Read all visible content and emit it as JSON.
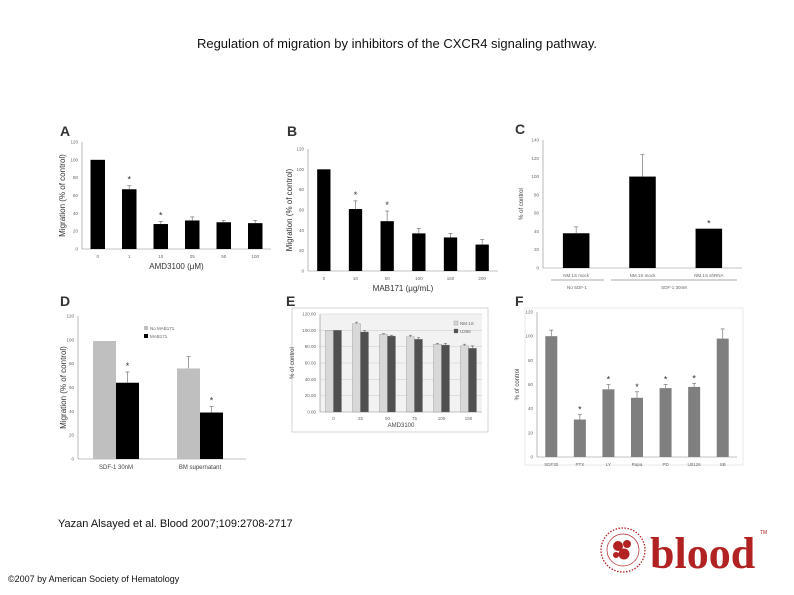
{
  "title": "Regulation of migration by inhibitors of the CXCR4 signaling pathway.",
  "citation": "Yazan Alsayed et al. Blood 2007;109:2708-2717",
  "copyright": "©2007 by American Society of Hematology",
  "logo": {
    "text": "blood",
    "tm": "TM"
  },
  "colors": {
    "black_bar": "#000000",
    "gray_bar": "#bfbfbf",
    "dark_gray_bar": "#505050",
    "light_gray_bar": "#d8d8d8",
    "gray_dark_F": "#7f7f7f",
    "logo_red": "#b22222"
  },
  "chart_data": [
    {
      "panel": "A",
      "type": "bar",
      "ylabel": "Migration (% of control)",
      "xlabel": "AMD3100 (μM)",
      "ylim": [
        0,
        120
      ],
      "yticks": [
        "0",
        "20",
        "40",
        "60",
        "80",
        "100",
        "120"
      ],
      "categories": [
        "0",
        "1",
        "10",
        "25",
        "50",
        "100"
      ],
      "values": [
        100,
        67,
        28,
        32,
        30,
        29
      ],
      "errors": [
        0,
        4,
        3,
        4,
        2,
        3
      ],
      "stars": [
        "",
        "*",
        "*",
        "",
        "",
        ""
      ]
    },
    {
      "panel": "B",
      "type": "bar",
      "ylabel": "Migration (% of control)",
      "xlabel": "MAB171 (μg/mL)",
      "ylim": [
        0,
        120
      ],
      "yticks": [
        "0",
        "20",
        "40",
        "60",
        "80",
        "100",
        "120"
      ],
      "categories": [
        "0",
        "10",
        "50",
        "100",
        "150",
        "200"
      ],
      "values": [
        100,
        61,
        49,
        37,
        33,
        26
      ],
      "errors": [
        0,
        8,
        10,
        5,
        4,
        5
      ],
      "stars": [
        "",
        "*",
        "*",
        "",
        "",
        ""
      ]
    },
    {
      "panel": "C",
      "type": "bar",
      "ylabel": "% of control",
      "ylim": [
        0,
        140
      ],
      "yticks": [
        "0",
        "20",
        "40",
        "60",
        "80",
        "100",
        "120",
        "140"
      ],
      "categories": [
        "NM.1S mock",
        "NM.1S mock",
        "NM.1S shRNA"
      ],
      "group_labels": [
        "No SDF-1",
        "SDF-1 30nM"
      ],
      "values": [
        38,
        100,
        43
      ],
      "errors": [
        7,
        24,
        0
      ],
      "stars": [
        "",
        "",
        "*"
      ]
    },
    {
      "panel": "D",
      "type": "bar",
      "ylabel": "Migration (% of control)",
      "ylim": [
        0,
        120
      ],
      "yticks": [
        "0",
        "20",
        "40",
        "60",
        "80",
        "100",
        "120"
      ],
      "categories": [
        "SDF-1 30nM",
        "BM supernatant"
      ],
      "series": [
        {
          "name": "No MAB171",
          "values": [
            99,
            76
          ],
          "errors": [
            0,
            10
          ]
        },
        {
          "name": "MAB171",
          "values": [
            64,
            39
          ],
          "errors": [
            9,
            5
          ]
        }
      ],
      "stars": [
        [
          "",
          ""
        ],
        [
          "*",
          "*"
        ]
      ]
    },
    {
      "panel": "E",
      "type": "bar",
      "ylabel": "% of control",
      "xlabel": "AMD3100",
      "ylim": [
        0,
        120
      ],
      "yticks": [
        "0.00",
        "20.00",
        "40.00",
        "60.00",
        "80.00",
        "100.00",
        "120.00"
      ],
      "categories": [
        "0",
        "25",
        "50",
        "75",
        "100",
        "150"
      ],
      "series": [
        {
          "name": "NM.1S",
          "values": [
            100,
            108,
            95,
            92,
            83,
            81
          ],
          "errors": [
            0,
            2,
            1,
            2,
            1,
            2
          ]
        },
        {
          "name": "U266",
          "values": [
            100,
            98,
            93,
            89,
            82,
            78
          ],
          "errors": [
            0,
            2,
            1,
            2,
            2,
            3
          ]
        }
      ]
    },
    {
      "panel": "F",
      "type": "bar",
      "ylabel": "% of control",
      "ylim": [
        0,
        120
      ],
      "yticks": [
        "0",
        "20",
        "40",
        "60",
        "80",
        "100",
        "120"
      ],
      "categories": [
        "SDF30",
        "PTX",
        "LY",
        "Rapa",
        "PD",
        "U0126",
        "SB"
      ],
      "values": [
        100,
        31,
        56,
        49,
        57,
        58,
        98
      ],
      "errors": [
        5,
        4,
        4,
        5,
        3,
        3,
        8
      ],
      "stars": [
        "",
        "*",
        "*",
        "*",
        "*",
        "*",
        ""
      ]
    }
  ]
}
